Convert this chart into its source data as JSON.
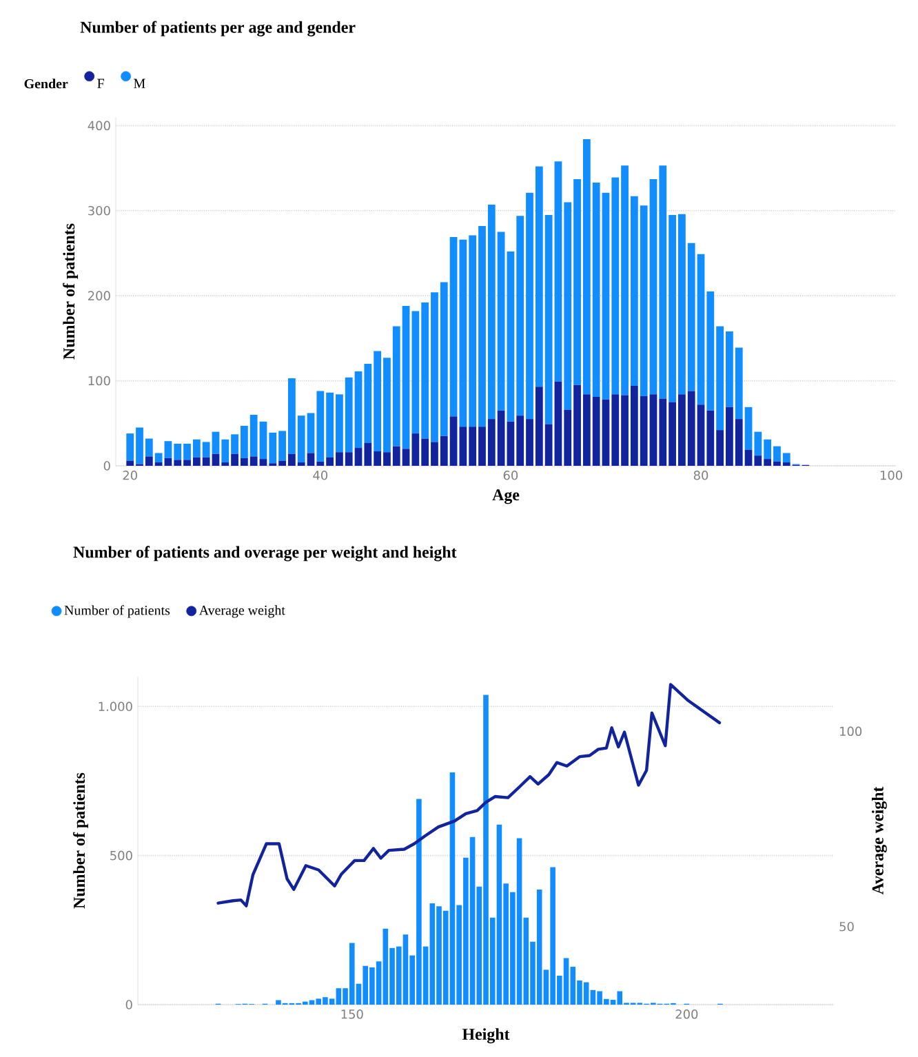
{
  "chart_data": [
    {
      "type": "bar",
      "title": "Number of patients per age and gender",
      "xlabel": "Age",
      "ylabel": "Number of patients",
      "legend_title": "Gender",
      "stacked": true,
      "grid": "y",
      "legend": "top left",
      "x": [
        20,
        21,
        22,
        23,
        24,
        25,
        26,
        27,
        28,
        29,
        30,
        31,
        32,
        33,
        34,
        35,
        36,
        37,
        38,
        39,
        40,
        41,
        42,
        43,
        44,
        45,
        46,
        47,
        48,
        49,
        50,
        51,
        52,
        53,
        54,
        55,
        56,
        57,
        58,
        59,
        60,
        61,
        62,
        63,
        64,
        65,
        66,
        67,
        68,
        69,
        70,
        71,
        72,
        73,
        74,
        75,
        76,
        77,
        78,
        79,
        80,
        81,
        82,
        83,
        84,
        85,
        86,
        87,
        88,
        89,
        90,
        91
      ],
      "xlim": [
        18.5,
        100.5
      ],
      "xticks": [
        20,
        40,
        60,
        80,
        100
      ],
      "ylim": [
        0,
        410
      ],
      "yticks": [
        0,
        100,
        200,
        300,
        400
      ],
      "series": [
        {
          "name": "F",
          "color": "#12239e",
          "values": [
            6,
            2,
            11,
            4,
            9,
            7,
            7,
            10,
            10,
            14,
            4,
            14,
            9,
            11,
            8,
            3,
            6,
            14,
            4,
            15,
            5,
            10,
            16,
            16,
            21,
            27,
            17,
            16,
            23,
            20,
            38,
            32,
            28,
            35,
            58,
            46,
            46,
            46,
            55,
            65,
            52,
            59,
            55,
            93,
            49,
            99,
            66,
            95,
            84,
            81,
            78,
            84,
            83,
            94,
            82,
            84,
            79,
            75,
            84,
            88,
            72,
            65,
            42,
            69,
            55,
            19,
            12,
            8,
            5,
            4,
            1,
            1
          ]
        },
        {
          "name": "M",
          "color": "#118dff",
          "values": [
            32,
            43,
            21,
            11,
            20,
            19,
            19,
            21,
            18,
            26,
            27,
            23,
            38,
            49,
            44,
            36,
            35,
            89,
            55,
            47,
            83,
            76,
            68,
            88,
            90,
            93,
            118,
            111,
            141,
            168,
            144,
            160,
            176,
            181,
            211,
            220,
            225,
            236,
            252,
            210,
            200,
            235,
            266,
            259,
            246,
            259,
            244,
            242,
            300,
            252,
            243,
            255,
            270,
            223,
            224,
            253,
            274,
            220,
            212,
            174,
            177,
            140,
            122,
            89,
            84,
            50,
            28,
            23,
            18,
            11,
            1,
            0
          ]
        }
      ]
    },
    {
      "type": "bar",
      "title": "Number of patients and overage per weight and height",
      "xlabel": "Height",
      "ylabel": "Number of patients",
      "y2label": "Average weight",
      "grid": "y",
      "legend": "top left",
      "xlim": [
        118,
        222
      ],
      "xticks": [
        150,
        200
      ],
      "ylim": [
        0,
        1100
      ],
      "yticks": [
        0,
        500,
        {
          "value": 1000,
          "label": "1.000"
        }
      ],
      "y2lim": [
        30,
        114
      ],
      "y2ticks": [
        50,
        100
      ],
      "series": [
        {
          "name": "Number of patients",
          "type": "bar",
          "color": "#118dff",
          "x": [
            130,
            133,
            134,
            135,
            137,
            139,
            140,
            141,
            142,
            143,
            144,
            145,
            146,
            147,
            148,
            149,
            150,
            151,
            152,
            153,
            154,
            155,
            156,
            157,
            158,
            159,
            160,
            161,
            162,
            163,
            164,
            165,
            166,
            167,
            168,
            169,
            170,
            171,
            172,
            173,
            174,
            175,
            176,
            177,
            178,
            179,
            180,
            181,
            182,
            183,
            184,
            185,
            186,
            187,
            188,
            189,
            190,
            191,
            192,
            193,
            194,
            195,
            196,
            197,
            198,
            200,
            205
          ],
          "values": [
            3,
            2,
            3,
            2,
            3,
            15,
            5,
            5,
            5,
            10,
            15,
            20,
            25,
            20,
            55,
            55,
            207,
            70,
            130,
            125,
            145,
            255,
            190,
            195,
            235,
            165,
            690,
            195,
            340,
            330,
            315,
            779,
            334,
            493,
            562,
            396,
            1039,
            292,
            604,
            406,
            377,
            558,
            292,
            211,
            386,
            117,
            461,
            97,
            156,
            127,
            81,
            75,
            49,
            45,
            19,
            16,
            45,
            6,
            6,
            6,
            3,
            6,
            3,
            3,
            5,
            3,
            3
          ]
        },
        {
          "name": "Average weight",
          "type": "line",
          "axis": "y2",
          "color": "#12239e",
          "x": [
            130,
            132.2,
            133.4,
            134.2,
            135.2,
            137.2,
            139.1,
            140.3,
            141.3,
            143.1,
            145,
            147.4,
            148.4,
            150.4,
            151.8,
            153.2,
            154.3,
            155.5,
            157.8,
            159.3,
            160.9,
            162.9,
            165.3,
            167,
            168.7,
            170,
            171.4,
            173.3,
            175.1,
            176.6,
            177.8,
            179.4,
            180.6,
            182.1,
            184,
            185.5,
            186.8,
            188,
            188.8,
            189.8,
            190.7,
            192.8,
            194,
            194.8,
            196.8,
            197.6,
            200.2,
            204.9
          ],
          "values": [
            56.0,
            56.6,
            56.8,
            55.3,
            63.3,
            71.2,
            71.2,
            62.2,
            59.5,
            65.6,
            64.5,
            60.4,
            63.4,
            66.9,
            66.9,
            70.0,
            67.5,
            69.5,
            69.8,
            71.2,
            73.2,
            75.5,
            77,
            78.9,
            79.7,
            81.8,
            83.3,
            83.0,
            85.9,
            88.4,
            86.5,
            88.9,
            92.0,
            91.1,
            93.5,
            93.8,
            95.4,
            95.7,
            100.9,
            96.0,
            99.8,
            86.2,
            90.0,
            104.7,
            96.3,
            112.0,
            107.9,
            102.2
          ]
        }
      ]
    }
  ]
}
